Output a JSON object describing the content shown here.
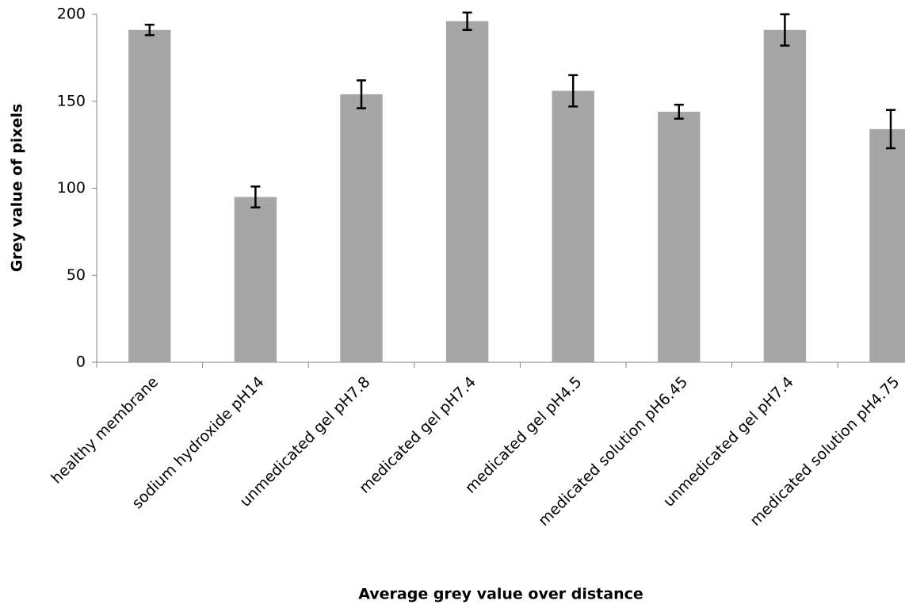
{
  "chart_data": {
    "type": "bar",
    "x_label": "Average grey value over distance",
    "y_label": "Grey value of pixels",
    "categories": [
      "healthy membrane",
      "sodium hydroxide pH14",
      "unmedicated gel pH7.8",
      "medicated gel pH7.4",
      "medicated gel pH4.5",
      "medicated solution pH6.45",
      "unmedicated gel pH7.4",
      "medicated solution pH4.75"
    ],
    "values": [
      191,
      95,
      154,
      196,
      156,
      144,
      191,
      134
    ],
    "errors": [
      3,
      6,
      8,
      5,
      9,
      4,
      9,
      11
    ],
    "color": "#a6a6a6",
    "ylim": [
      0,
      200
    ],
    "yticks": [
      0,
      50,
      100,
      150,
      200
    ],
    "grid": false
  }
}
